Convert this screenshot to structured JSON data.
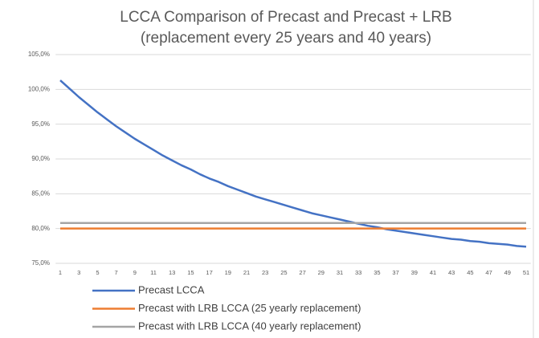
{
  "chart_data": {
    "type": "line",
    "title": [
      "LCCA Comparison of Precast and Precast + LRB",
      "(replacement every 25 years and 40 years)"
    ],
    "categories": [
      1,
      null,
      3,
      null,
      5,
      null,
      7,
      null,
      9,
      null,
      11,
      null,
      13,
      null,
      15,
      null,
      17,
      null,
      19,
      null,
      21,
      null,
      23,
      null,
      25,
      null,
      27,
      null,
      29,
      null,
      31,
      null,
      33,
      null,
      35,
      null,
      37,
      null,
      39,
      null,
      41,
      null,
      43,
      null,
      45,
      null,
      47,
      null,
      49,
      null,
      51
    ],
    "series": [
      {
        "name": "Precast LCCA",
        "color": "#4472c4",
        "values": [
          101.3,
          100.1,
          98.9,
          97.8,
          96.7,
          95.7,
          94.7,
          93.8,
          92.9,
          92.1,
          91.3,
          90.5,
          89.8,
          89.1,
          88.5,
          87.8,
          87.2,
          86.7,
          86.1,
          85.6,
          85.1,
          84.6,
          84.2,
          83.8,
          83.4,
          83.0,
          82.6,
          82.2,
          81.9,
          81.6,
          81.3,
          81.0,
          80.7,
          80.4,
          80.2,
          79.9,
          79.7,
          79.5,
          79.3,
          79.1,
          78.9,
          78.7,
          78.5,
          78.4,
          78.2,
          78.1,
          77.9,
          77.8,
          77.7,
          77.5,
          77.4
        ]
      },
      {
        "name": "Precast with LRB LCCA (25 yearly replacement)",
        "color": "#ed7d31",
        "values": [
          80,
          80,
          80,
          80,
          80,
          80,
          80,
          80,
          80,
          80,
          80,
          80,
          80,
          80,
          80,
          80,
          80,
          80,
          80,
          80,
          80,
          80,
          80,
          80,
          80,
          80,
          80,
          80,
          80,
          80,
          80,
          80,
          80,
          80,
          80,
          80,
          80,
          80,
          80,
          80,
          80,
          80,
          80,
          80,
          80,
          80,
          80,
          80,
          80,
          80,
          80
        ]
      },
      {
        "name": "Precast with LRB LCCA (40 yearly replacement)",
        "color": "#a5a5a5",
        "values": [
          80.8,
          80.8,
          80.8,
          80.8,
          80.8,
          80.8,
          80.8,
          80.8,
          80.8,
          80.8,
          80.8,
          80.8,
          80.8,
          80.8,
          80.8,
          80.8,
          80.8,
          80.8,
          80.8,
          80.8,
          80.8,
          80.8,
          80.8,
          80.8,
          80.8,
          80.8,
          80.8,
          80.8,
          80.8,
          80.8,
          80.8,
          80.8,
          80.8,
          80.8,
          80.8,
          80.8,
          80.8,
          80.8,
          80.8,
          80.8,
          80.8,
          80.8,
          80.8,
          80.8,
          80.8,
          80.8,
          80.8,
          80.8,
          80.8,
          80.8,
          80.8
        ]
      }
    ],
    "ylim": [
      75,
      105
    ],
    "yticks": [
      {
        "value": 75,
        "label": "75,0%"
      },
      {
        "value": 80,
        "label": "80,0%"
      },
      {
        "value": 85,
        "label": "85,0%"
      },
      {
        "value": 90,
        "label": "90,0%"
      },
      {
        "value": 95,
        "label": "95,0%"
      },
      {
        "value": 100,
        "label": "100,0%"
      },
      {
        "value": 105,
        "label": "105,0%"
      }
    ],
    "grid": true,
    "legend": "bottom"
  }
}
